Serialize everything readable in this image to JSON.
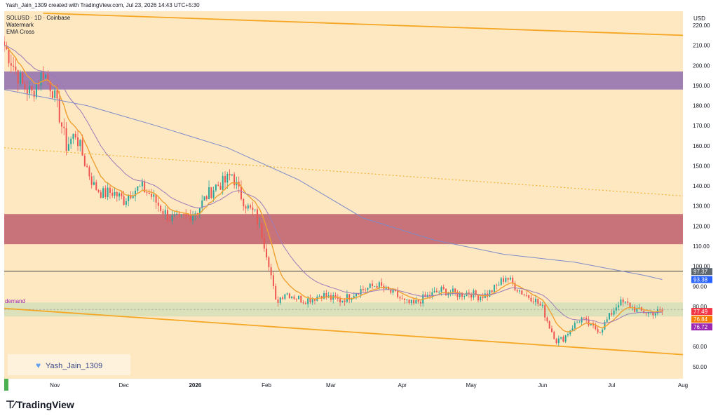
{
  "header": {
    "created_text": "Yash_Jain_1309 created with TradingView.com, Jul 23, 2026 14:43 UTC+5:30"
  },
  "legend": {
    "symbol_line": "SOLUSD · 1D · Coinbase",
    "indicator_1": "Watermark",
    "indicator_2": "EMA Cross"
  },
  "watermark": {
    "heart_icon": "heart-icon",
    "text": "Yash_Jain_1309"
  },
  "zone_label": "demand",
  "footer": {
    "brand_icon": "tradingview-logo-icon",
    "brand": "TradingView"
  },
  "colors": {
    "background": "#fde8c2",
    "axis_background": "#ffffff",
    "supply_zone_upper": "#a07fb3",
    "supply_zone_lower": "#c87379",
    "channel_line": "#f5a623",
    "dotted_line": "#f2b233",
    "candle_up": "#26a69a",
    "candle_down": "#ef5350",
    "ema_fast": "#f0a030",
    "ema_slow": "#9c7bb8",
    "ema_long": "#7e8bc8",
    "badge_price": "#5e6670",
    "badge_blue": "#2962ff",
    "badge_red": "#f23645",
    "badge_orange": "#f57c00",
    "badge_purple": "#9c27b0"
  },
  "chart_data": {
    "type": "candlestick",
    "symbol": "SOLUSD",
    "timeframe": "1D",
    "exchange": "Coinbase",
    "currency": "USD",
    "ylim": [
      44,
      227
    ],
    "y_ticks": [
      50,
      60,
      70,
      80,
      90,
      100,
      110,
      120,
      130,
      140,
      150,
      160,
      170,
      180,
      190,
      200,
      210,
      220
    ],
    "y_tick_labels": [
      "50.00",
      "60.00",
      "70.00",
      "80.00",
      "90.00",
      "100.00",
      "110.00",
      "120.00",
      "130.00",
      "140.00",
      "150.00",
      "160.00",
      "170.00",
      "180.00",
      "190.00",
      "200.00",
      "210.00",
      "220.00"
    ],
    "x_start": "2025-10-10",
    "x_end": "2026-08-01",
    "x_ticks": [
      {
        "date": "2025-11-01",
        "label": "Nov"
      },
      {
        "date": "2025-12-01",
        "label": "Dec"
      },
      {
        "date": "2026-01-01",
        "label": "2026"
      },
      {
        "date": "2026-02-01",
        "label": "Feb"
      },
      {
        "date": "2026-03-01",
        "label": "Mar"
      },
      {
        "date": "2026-04-01",
        "label": "Apr"
      },
      {
        "date": "2026-05-01",
        "label": "May"
      },
      {
        "date": "2026-06-01",
        "label": "Jun"
      },
      {
        "date": "2026-07-01",
        "label": "Jul"
      },
      {
        "date": "2026-08-01",
        "label": "Aug"
      }
    ],
    "close_anchors": [
      [
        "2025-10-10",
        210
      ],
      [
        "2025-10-14",
        200
      ],
      [
        "2025-10-18",
        190
      ],
      [
        "2025-10-22",
        186
      ],
      [
        "2025-10-27",
        197
      ],
      [
        "2025-10-31",
        188
      ],
      [
        "2025-11-03",
        175
      ],
      [
        "2025-11-06",
        160
      ],
      [
        "2025-11-10",
        166
      ],
      [
        "2025-11-14",
        152
      ],
      [
        "2025-11-18",
        140
      ],
      [
        "2025-11-22",
        136
      ],
      [
        "2025-11-26",
        137
      ],
      [
        "2025-12-01",
        133
      ],
      [
        "2025-12-05",
        138
      ],
      [
        "2025-12-09",
        139
      ],
      [
        "2025-12-13",
        135
      ],
      [
        "2025-12-17",
        129
      ],
      [
        "2025-12-21",
        124
      ],
      [
        "2025-12-25",
        123
      ],
      [
        "2025-12-29",
        125
      ],
      [
        "2026-01-02",
        128
      ],
      [
        "2026-01-06",
        135
      ],
      [
        "2026-01-10",
        140
      ],
      [
        "2026-01-14",
        142
      ],
      [
        "2026-01-17",
        146
      ],
      [
        "2026-01-20",
        137
      ],
      [
        "2026-01-24",
        129
      ],
      [
        "2026-01-27",
        126
      ],
      [
        "2026-01-30",
        116
      ],
      [
        "2026-02-02",
        102
      ],
      [
        "2026-02-05",
        82
      ],
      [
        "2026-02-09",
        87
      ],
      [
        "2026-02-13",
        85
      ],
      [
        "2026-02-17",
        83
      ],
      [
        "2026-02-21",
        84
      ],
      [
        "2026-02-25",
        86
      ],
      [
        "2026-03-01",
        84
      ],
      [
        "2026-03-05",
        83
      ],
      [
        "2026-03-09",
        85
      ],
      [
        "2026-03-13",
        88
      ],
      [
        "2026-03-17",
        89
      ],
      [
        "2026-03-21",
        91
      ],
      [
        "2026-03-25",
        88
      ],
      [
        "2026-03-29",
        86
      ],
      [
        "2026-04-02",
        82
      ],
      [
        "2026-04-06",
        81
      ],
      [
        "2026-04-10",
        84
      ],
      [
        "2026-04-14",
        86
      ],
      [
        "2026-04-18",
        88
      ],
      [
        "2026-04-22",
        87
      ],
      [
        "2026-04-26",
        86
      ],
      [
        "2026-04-30",
        87
      ],
      [
        "2026-05-04",
        85
      ],
      [
        "2026-05-08",
        86
      ],
      [
        "2026-05-12",
        90
      ],
      [
        "2026-05-16",
        95
      ],
      [
        "2026-05-20",
        90
      ],
      [
        "2026-05-24",
        86
      ],
      [
        "2026-05-28",
        84
      ],
      [
        "2026-06-01",
        79
      ],
      [
        "2026-06-04",
        70
      ],
      [
        "2026-06-07",
        63
      ],
      [
        "2026-06-10",
        64
      ],
      [
        "2026-06-14",
        70
      ],
      [
        "2026-06-18",
        74
      ],
      [
        "2026-06-22",
        70
      ],
      [
        "2026-06-26",
        68
      ],
      [
        "2026-06-30",
        75
      ],
      [
        "2026-07-04",
        82
      ],
      [
        "2026-07-08",
        81
      ],
      [
        "2026-07-12",
        78
      ],
      [
        "2026-07-16",
        77
      ],
      [
        "2026-07-20",
        77
      ],
      [
        "2026-07-23",
        77.5
      ]
    ],
    "supply_zones": [
      {
        "top": 197,
        "bottom": 188
      },
      {
        "top": 126,
        "bottom": 111
      }
    ],
    "demand_zone": {
      "label": "demand",
      "top": 82,
      "bottom": 75
    },
    "horizontal_lines": [
      97.5
    ],
    "channel_upper": [
      [
        "2025-10-27",
        226
      ],
      [
        "2026-08-01",
        215
      ]
    ],
    "channel_lower": [
      [
        "2025-10-10",
        79
      ],
      [
        "2026-08-01",
        56
      ]
    ],
    "dotted_trend": [
      [
        "2025-10-10",
        159
      ],
      [
        "2026-08-01",
        135
      ]
    ],
    "ema_long_path": [
      [
        "2025-10-10",
        188
      ],
      [
        "2025-11-15",
        180
      ],
      [
        "2025-12-15",
        170
      ],
      [
        "2026-01-15",
        159
      ],
      [
        "2026-02-15",
        143
      ],
      [
        "2026-03-15",
        124
      ],
      [
        "2026-04-15",
        113
      ],
      [
        "2026-05-15",
        106
      ],
      [
        "2026-06-15",
        102
      ],
      [
        "2026-07-15",
        95.5
      ],
      [
        "2026-07-23",
        93.4
      ]
    ],
    "price_badges": [
      {
        "value": 97.37,
        "label": "97.37",
        "color": "#5e6670"
      },
      {
        "value": 93.38,
        "label": "93.38",
        "color": "#2962ff"
      },
      {
        "value": 77.49,
        "label": "77.49",
        "color": "#f23645"
      },
      {
        "value": 76.84,
        "label": "76.84",
        "color": "#f57c00"
      },
      {
        "value": 76.72,
        "label": "76.72",
        "color": "#9c27b0"
      }
    ]
  }
}
